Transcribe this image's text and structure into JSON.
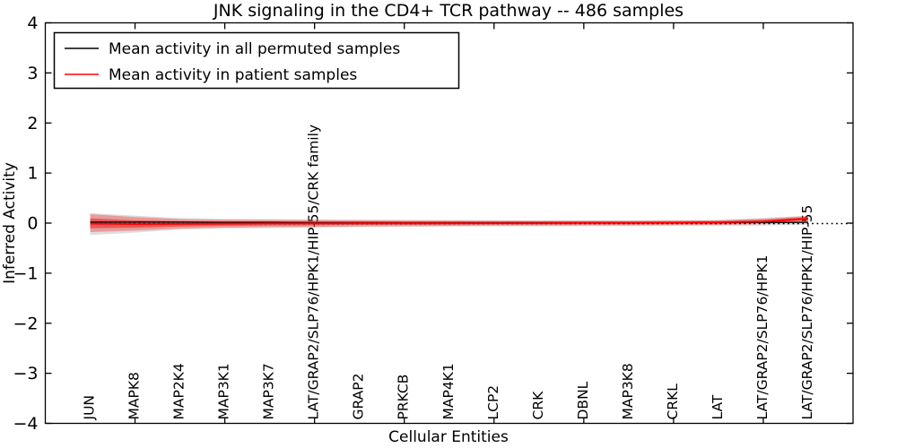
{
  "title": "JNK signaling in the CD4+ TCR pathway -- 486 samples",
  "axes": {
    "xlabel": "Cellular Entities",
    "ylabel": "Inferred Activity",
    "ylim": [
      -4,
      4
    ],
    "yticks": [
      4,
      3,
      2,
      1,
      0,
      -1,
      -2,
      -3,
      -4
    ]
  },
  "legend": {
    "entries": [
      {
        "label": "Mean activity in all permuted samples",
        "color": "#000000"
      },
      {
        "label": "Mean activity in patient samples",
        "color": "#ff0000"
      }
    ]
  },
  "chart_data": {
    "type": "line",
    "title": "JNK signaling in the CD4+ TCR pathway -- 486 samples",
    "xlabel": "Cellular Entities",
    "ylabel": "Inferred Activity",
    "ylim": [
      -4,
      4
    ],
    "grid": false,
    "legend_position": "upper left",
    "categories": [
      "JUN",
      "MAPK8",
      "MAP2K4",
      "MAP3K1",
      "MAP3K7",
      "LAT/GRAP2/SLP76/HPK1/HIP-55/CRK family",
      "GRAP2",
      "PRKCB",
      "MAP4K1",
      "LCP2",
      "CRK",
      "DBNL",
      "MAP3K8",
      "CRKL",
      "LAT",
      "LAT/GRAP2/SLP76/HPK1",
      "LAT/GRAP2/SLP76/HPK1/HIP-55"
    ],
    "series": [
      {
        "name": "Mean activity in all permuted samples",
        "color": "#000000",
        "style": "solid",
        "values": [
          0.02,
          0.02,
          0.02,
          0.015,
          0.015,
          0.01,
          0.01,
          0.01,
          0.01,
          0.01,
          0.01,
          0.01,
          0.01,
          0.01,
          0.01,
          0.012,
          0.015
        ]
      },
      {
        "name": "Mean activity in patient samples",
        "color": "#ff0000",
        "style": "solid",
        "values": [
          -0.01,
          -0.02,
          -0.015,
          -0.01,
          -0.005,
          -0.005,
          0.0,
          0.0,
          0.0,
          0.0,
          0.0,
          0.005,
          0.005,
          0.01,
          0.015,
          0.03,
          0.09
        ]
      }
    ],
    "bands": [
      {
        "name": "permuted samples spread",
        "color": "#888888",
        "opacity": 0.28,
        "upper": [
          0.2,
          0.15,
          0.1,
          0.085,
          0.08,
          0.075,
          0.07,
          0.065,
          0.06,
          0.06,
          0.055,
          0.055,
          0.055,
          0.06,
          0.065,
          0.1,
          0.15
        ],
        "lower": [
          -0.24,
          -0.19,
          -0.13,
          -0.11,
          -0.1,
          -0.09,
          -0.08,
          -0.075,
          -0.07,
          -0.065,
          -0.065,
          -0.06,
          -0.06,
          -0.055,
          -0.055,
          -0.05,
          -0.03
        ]
      },
      {
        "name": "patient samples spread",
        "color": "#ff0000",
        "opacity": 0.3,
        "upper": [
          0.18,
          0.12,
          0.08,
          0.07,
          0.065,
          0.06,
          0.055,
          0.05,
          0.05,
          0.045,
          0.045,
          0.045,
          0.045,
          0.05,
          0.055,
          0.09,
          0.14
        ],
        "lower": [
          -0.18,
          -0.15,
          -0.11,
          -0.09,
          -0.08,
          -0.075,
          -0.065,
          -0.06,
          -0.055,
          -0.05,
          -0.05,
          -0.045,
          -0.045,
          -0.04,
          -0.035,
          -0.02,
          0.03
        ]
      }
    ],
    "zero_line": {
      "value": 0,
      "style": "dotted",
      "color": "#000000"
    }
  }
}
